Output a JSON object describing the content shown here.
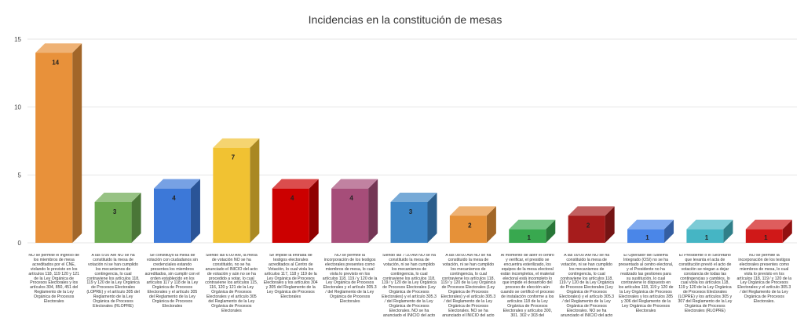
{
  "chart_data": {
    "type": "bar",
    "title": "Incidencias en la constitución de mesas",
    "xlabel": "",
    "ylabel": "",
    "ylim": [
      0,
      15
    ],
    "yticks": [
      0,
      5,
      10,
      15
    ],
    "grid": true,
    "categories": [
      "NO se permite el ingreso de los miembros de mesa acreditados por el CNE, violando lo previsto en los artículos 118, 119 120 y 121 de la Ley Orgánica de Procesos Electorales y los artículos 304, 850, 451 del Reglamento de la Ley Orgánica de Procesos Electorales",
      "A las 5:00 AM NO se ha constituido la mesa de votación ni se han cumplido los mecanismos de contingencia, lo cual contraviene los artículos 118, 119 y 120 de la Ley Orgánica de Procesos Electorales (LOPRE) y el artículo 305 del Reglamento de la Ley Orgánica de Procesos Electorales (RLOPRE)",
      "Se constituyó la mesa de votación con ciudadanos sin credenciales estando presentes los miembros acreditados, sin cumplir con el orden establecido en los artículos 117 y 118 de la Ley Orgánica de Procesos Electorales y el artículo 305 del Reglamento de la Ley Orgánica de Procesos Electorales",
      "Siendo las 6:00 AM, la mesa de votación NO se ha constituido, no se ha anunciado el INICIO del acto de votación y aún no se ha procedido a votar, lo cual contraviene los artículos 115, 116, 120 y 121 de la Ley Orgánica de Procesos Electorales y el artículo 305 del Reglamento de la Ley Orgánica de Procesos Electorales",
      "Se impide la entrada de testigos electorales acreditados al Centro de Votación, lo cual viola los artículos 117, 118 y 119 de la Ley Orgánica de Procesos Electorales y los artículos 304 y 305 del Reglamento de la Ley Orgánica de Procesos Electorales",
      "NO se permite la incorporación de los testigos electorales presentes como miembros de mesa, lo cual viola lo previsto en los artículos 118, 119 ⁄ y 120 de la Ley Orgánica de Procesos Electorales y el artículo 305.3 ⁄ del Reglamento de la Ley Orgánica de Procesos Electorales",
      "Siendo las 7:10 AM NO se ha constituido la mesa de votación, ni se han cumplido los mecanismos de contingencia, lo cual contraviene los artículos 118, 119 ⁄ y 120 de la Ley Orgánica de Procesos Electorales (Ley Orgánica de Procesos Electorales) y el artículo 305.3 ⁄ del Reglamento de la Ley Orgánica de Procesos Electorales. NO se ha anunciado el INICIO del acto de VOTACIÓN y aún no se ha procedido a votar",
      "A las 08:00 AM NO se ha constituido la mesa de votación, ni se han cumplido los mecanismos de contingencia, lo cual contraviene los artículos 118, 119 ⁄ y 120 de la Ley Orgánica de Procesos Electorales (Ley Orgánica de Procesos Electorales) y el artículo 305.3 ⁄ del Reglamento de la Ley Orgánica de Procesos Electorales. NO se ha anunciado el INICIO del acto de VOTACIÓN y aún no se ha procedido a votar",
      "Al momento de abrir el centro y verificar, el presidio se encuentra esterilizado, los equipos de la mesa electoral están incompletos, el material electoral está incompleto lo que impide el desarrollo del proceso de elección aún cuando se certificó el proceso de instalación conforme a los artículos 118 de la Ley Orgánica de Procesos Electorales y artículos 300, 301, 302 y 303 del Reglamento de la Ley Orgánica de Procesos Electorales",
      "A las 09:00 AM NO se ha constituido la mesa de votación, ni se han cumplido los mecanismos de contingencia, lo cual contraviene los artículos 118, 119 ⁄ y 120 de la Ley Orgánica de Procesos Electorales (Ley Orgánica de Procesos Electorales) y el artículo 305.3 ⁄ del Reglamento de la Ley Orgánica de Procesos Electorales. NO se ha anunciado el INICIO del acto de VOTACIÓN y aún no se ha procedido a votar",
      "El Operador del Sistema Integrado (OSI) no se ha presentado al centro electoral, y el Presidente no ha realizado las gestiones para su sustitución, lo cual contraviene lo dispuesto en los artículos 118, 119 y 120 de la Ley Orgánica de Procesos Electorales y los artículos 285 y 306 del Reglamento de la Ley Orgánica de Procesos Electorales",
      "El Presidente o el Secretario que levanta el acta de constitución previó el acto de votación se niegan a dejar constancia de todas las contingencias y cambios, lo cual viola los artículos 118, 119 y 120 de la Ley Orgánica de Procesos Electorales (LOPRE) y los artículos 305 y 307 del Reglamento de la Ley Orgánica de Procesos Electorales (RLOPRE)",
      "NO se permite la incorporación de los testigos electorales presentes como miembros de mesa, lo cual viola lo previsto en los artículos 118, 119 ⁄ y 120 de la Ley Orgánica de Procesos Electorales y el artículo 305.3 ⁄ del Reglamento de la Ley Orgánica de Procesos Electorales."
    ],
    "values": [
      14,
      3,
      4,
      7,
      4,
      4,
      3,
      2,
      1,
      2,
      1,
      1,
      1
    ],
    "colors": [
      "#e8913a",
      "#6aa84f",
      "#3c78d8",
      "#f1c232",
      "#cc0000",
      "#a64d79",
      "#3d85c6",
      "#e69138",
      "#38a84f",
      "#a61c1c",
      "#4a86e8",
      "#45b5c4",
      "#d01818"
    ]
  }
}
